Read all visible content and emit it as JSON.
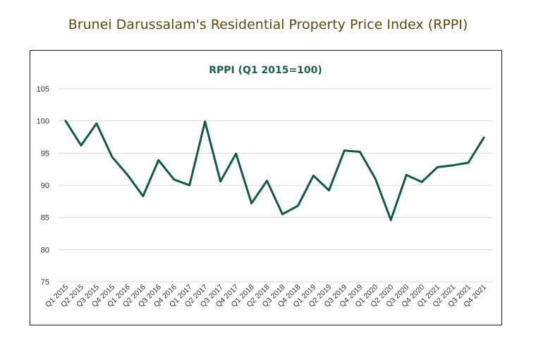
{
  "page_title": "Brunei Darussalam's Residential Property Price Index (RPPI)",
  "colors": {
    "line": "#0f5a48",
    "grid": "#d9d9d9",
    "title": "#5a4a0e",
    "chart_title": "#1e5e4e"
  },
  "chart_data": {
    "type": "line",
    "title": "RPPI (Q1 2015=100)",
    "xlabel": "",
    "ylabel": "",
    "ylim": [
      75,
      105
    ],
    "yticks": [
      75,
      80,
      85,
      90,
      95,
      100,
      105
    ],
    "grid": true,
    "legend": "none",
    "categories": [
      "Q1 2015",
      "Q2 2015",
      "Q3 2015",
      "Q4 2015",
      "Q1 2016",
      "Q2 2016",
      "Q3 2016",
      "Q4 2016",
      "Q1 2017",
      "Q2 2017",
      "Q3 2017",
      "Q4 2017",
      "Q1 2018",
      "Q2 2018",
      "Q3 2018",
      "Q4 2018",
      "Q1 2019",
      "Q2 2019",
      "Q3 2019",
      "Q4 2019",
      "Q1 2020",
      "Q2 2020",
      "Q3 2020",
      "Q4 2020",
      "Q1 2021",
      "Q2 2021",
      "Q3 2021",
      "Q4 2021"
    ],
    "series": [
      {
        "values": [
          100.0,
          96.2,
          99.6,
          94.4,
          91.6,
          88.3,
          93.9,
          90.9,
          90.0,
          99.9,
          90.6,
          94.9,
          87.2,
          90.7,
          85.5,
          86.8,
          91.5,
          89.2,
          95.4,
          95.2,
          91.0,
          84.6,
          91.6,
          90.5,
          92.8,
          93.1,
          93.5,
          97.4
        ]
      }
    ]
  }
}
